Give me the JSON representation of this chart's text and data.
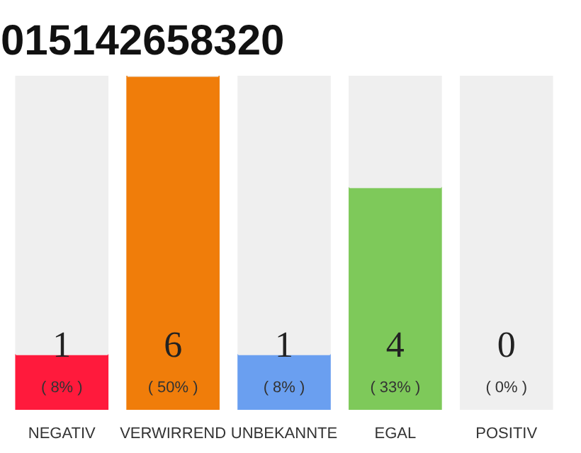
{
  "chart_data": {
    "type": "bar",
    "title": "015142658320",
    "categories": [
      "NEGATIV",
      "VERWIRREND",
      "UNBEKANNTE",
      "EGAL",
      "POSITIV"
    ],
    "stacked": true,
    "ylim": [
      0,
      6
    ],
    "tick_labels": "x",
    "series": [
      {
        "values": [
          1,
          6,
          1,
          4,
          0
        ],
        "colors": [
          "#ff1a3c",
          "#f07d0a",
          "#6a9ff0",
          "#7ec95a",
          "#22aa44"
        ],
        "value_labels": [
          "1",
          "6",
          "1",
          "4",
          "0"
        ]
      },
      {
        "values": [
          5,
          0,
          5,
          2,
          6
        ],
        "color": "#efefef"
      }
    ],
    "annotations": [
      "( 8% )",
      "( 50% )",
      "( 8% )",
      "( 33% )",
      "( 0% )"
    ]
  }
}
